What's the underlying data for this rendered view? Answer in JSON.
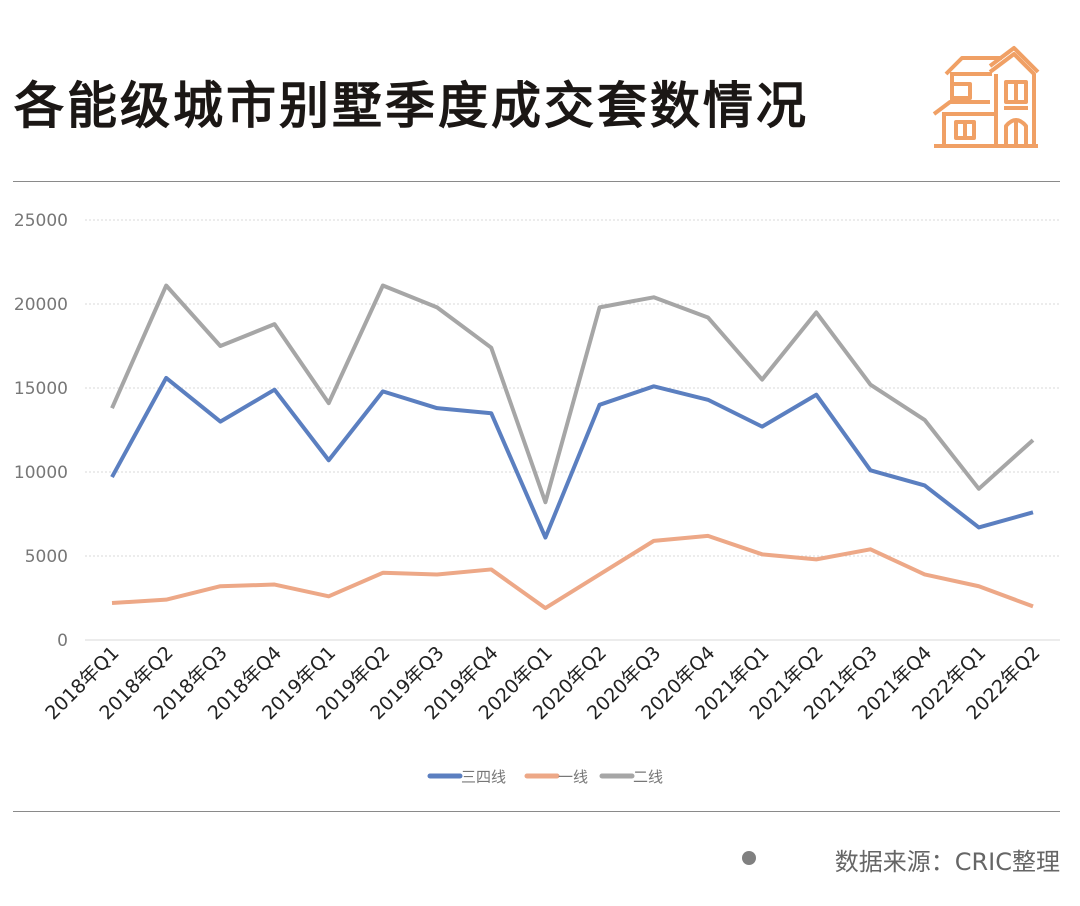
{
  "title": "各能级城市别墅季度成交套数情况",
  "source": "数据来源：CRIC整理",
  "colors": {
    "三四线": "#5b7fc0",
    "一线": "#eda887",
    "二线": "#a6a6a6",
    "house_icon": "#f0a065"
  },
  "chart_data": {
    "type": "line",
    "title": "各能级城市别墅季度成交套数情况",
    "xlabel": "",
    "ylabel": "",
    "ylim": [
      0,
      25000
    ],
    "yticks": [
      0,
      5000,
      10000,
      15000,
      20000,
      25000
    ],
    "grid": true,
    "legend_position": "bottom",
    "categories": [
      "2018年Q1",
      "2018年Q2",
      "2018年Q3",
      "2018年Q4",
      "2019年Q1",
      "2019年Q2",
      "2019年Q3",
      "2019年Q4",
      "2020年Q1",
      "2020年Q2",
      "2020年Q3",
      "2020年Q4",
      "2021年Q1",
      "2021年Q2",
      "2021年Q3",
      "2021年Q4",
      "2022年Q1",
      "2022年Q2"
    ],
    "series": [
      {
        "name": "三四线",
        "values": [
          9700,
          15600,
          13000,
          14900,
          10700,
          14800,
          13800,
          13500,
          6100,
          14000,
          15100,
          14300,
          12700,
          14600,
          10100,
          9200,
          6700,
          7600
        ]
      },
      {
        "name": "一线",
        "values": [
          2200,
          2400,
          3200,
          3300,
          2600,
          4000,
          3900,
          4200,
          1900,
          3900,
          5900,
          6200,
          5100,
          4800,
          5400,
          3900,
          3200,
          2000
        ]
      },
      {
        "name": "二线",
        "values": [
          13800,
          21100,
          17500,
          18800,
          14100,
          21100,
          19800,
          17400,
          8200,
          19800,
          20400,
          19200,
          15500,
          19500,
          15200,
          13100,
          9000,
          11900
        ]
      }
    ]
  }
}
